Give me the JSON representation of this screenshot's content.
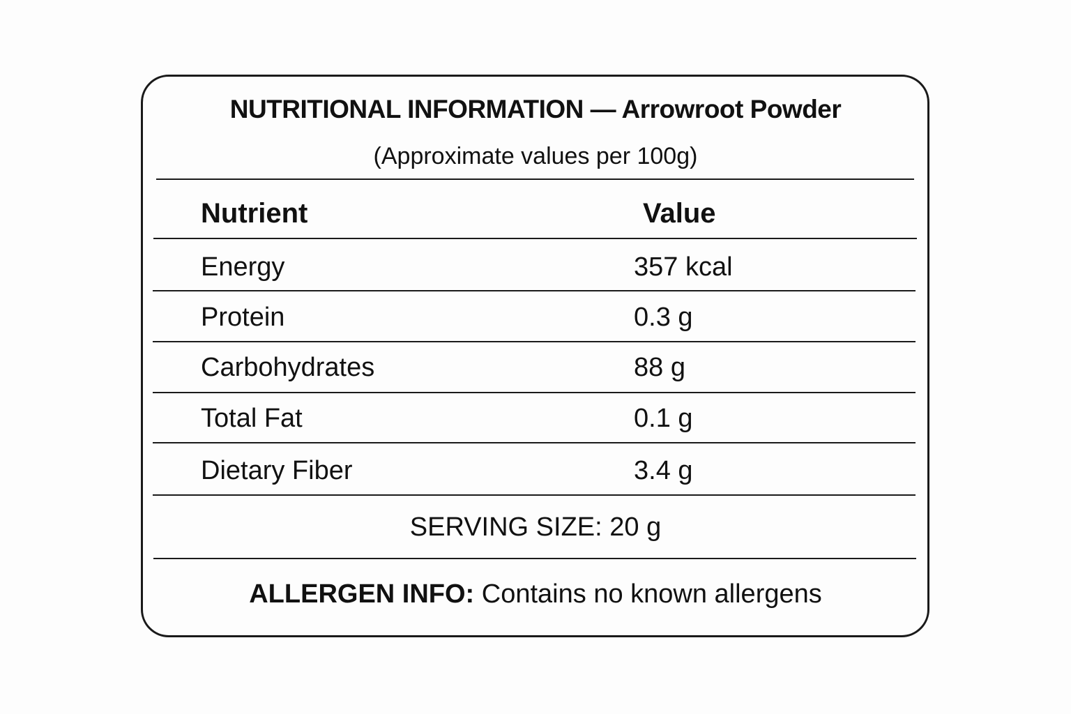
{
  "header": {
    "title": "NUTRITIONAL INFORMATION — Arrowroot Powder",
    "subtitle": "(Approximate values per 100g)"
  },
  "table": {
    "columns": [
      "Nutrient",
      "Value"
    ],
    "rows": [
      [
        "Energy",
        "357 kcal"
      ],
      [
        "Protein",
        "0.3 g"
      ],
      [
        "Carbohydrates",
        "88 g"
      ],
      [
        "Total Fat",
        "0.1 g"
      ],
      [
        "Dietary Fiber",
        "3.4 g"
      ]
    ]
  },
  "serving_size": "SERVING SIZE: 20 g",
  "allergen": {
    "label": "ALLERGEN INFO:",
    "text": "Contains no known allergens"
  }
}
